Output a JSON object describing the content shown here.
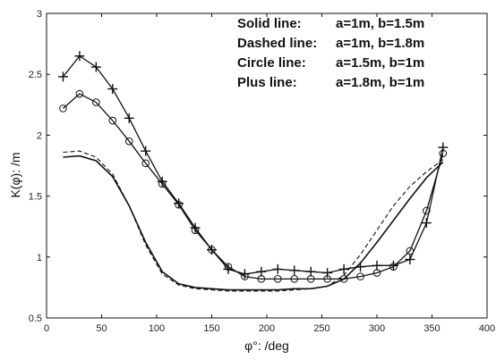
{
  "chart_data": {
    "type": "line",
    "title": "",
    "xlabel": "φ°: /deg",
    "ylabel": "K(φ): /m",
    "xlim": [
      0,
      400
    ],
    "ylim": [
      0.5,
      3
    ],
    "xticks": [
      0,
      50,
      100,
      150,
      200,
      250,
      300,
      350,
      400
    ],
    "yticks": [
      0.5,
      1,
      1.5,
      2,
      2.5,
      3
    ],
    "grid": false,
    "legend_position": "top-right",
    "legend": [
      {
        "label": "Solid line:",
        "params": "a=1m, b=1.5m"
      },
      {
        "label": "Dashed line:",
        "params": "a=1m, b=1.8m"
      },
      {
        "label": "Circle line:",
        "params": "a=1.5m, b=1m"
      },
      {
        "label": "Plus line:",
        "params": "a=1.8m, b=1m"
      }
    ],
    "series": [
      {
        "style": "solid",
        "x": [
          15,
          30,
          45,
          60,
          75,
          90,
          105,
          120,
          135,
          150,
          165,
          180,
          195,
          210,
          225,
          240,
          255,
          270,
          285,
          300,
          315,
          330,
          345,
          360
        ],
        "y": [
          1.82,
          1.83,
          1.79,
          1.66,
          1.42,
          1.12,
          0.88,
          0.78,
          0.75,
          0.74,
          0.73,
          0.73,
          0.73,
          0.73,
          0.74,
          0.74,
          0.76,
          0.82,
          0.95,
          1.12,
          1.3,
          1.48,
          1.65,
          1.78
        ]
      },
      {
        "style": "dashed",
        "x": [
          15,
          30,
          45,
          60,
          75,
          90,
          105,
          120,
          135,
          150,
          165,
          180,
          195,
          210,
          225,
          240,
          255,
          270,
          285,
          300,
          315,
          330,
          345,
          360
        ],
        "y": [
          1.86,
          1.87,
          1.82,
          1.68,
          1.42,
          1.1,
          0.86,
          0.77,
          0.74,
          0.73,
          0.72,
          0.72,
          0.72,
          0.72,
          0.73,
          0.74,
          0.76,
          0.85,
          1.02,
          1.22,
          1.42,
          1.58,
          1.7,
          1.8
        ]
      },
      {
        "style": "circle",
        "x": [
          15,
          30,
          45,
          60,
          75,
          90,
          105,
          120,
          135,
          150,
          165,
          180,
          195,
          210,
          225,
          240,
          255,
          270,
          285,
          300,
          315,
          330,
          345,
          360
        ],
        "y": [
          2.22,
          2.34,
          2.27,
          2.12,
          1.95,
          1.77,
          1.6,
          1.43,
          1.22,
          1.06,
          0.92,
          0.84,
          0.82,
          0.82,
          0.82,
          0.82,
          0.82,
          0.82,
          0.84,
          0.87,
          0.92,
          1.05,
          1.38,
          1.85
        ]
      },
      {
        "style": "plus",
        "x": [
          15,
          30,
          45,
          60,
          75,
          90,
          105,
          120,
          135,
          150,
          165,
          180,
          195,
          210,
          225,
          240,
          255,
          270,
          285,
          300,
          315,
          330,
          345,
          360
        ],
        "y": [
          2.48,
          2.65,
          2.56,
          2.38,
          2.14,
          1.87,
          1.62,
          1.44,
          1.24,
          1.06,
          0.9,
          0.86,
          0.88,
          0.9,
          0.89,
          0.88,
          0.87,
          0.9,
          0.92,
          0.93,
          0.93,
          0.98,
          1.28,
          1.9
        ]
      }
    ]
  }
}
